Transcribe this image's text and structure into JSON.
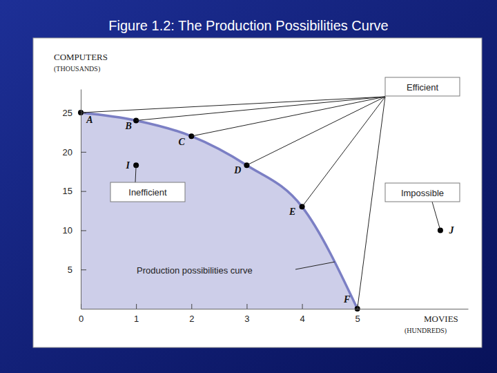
{
  "chart_data": {
    "type": "area",
    "title": "Figure 1.2: The Production Possibilities Curve",
    "xlabel": "MOVIES",
    "xlabel_unit": "(HUNDREDS)",
    "ylabel": "COMPUTERS",
    "ylabel_unit": "(THOUSANDS)",
    "xlim": [
      0,
      7
    ],
    "ylim": [
      0,
      28
    ],
    "xticks": [
      0,
      1,
      2,
      3,
      4,
      5
    ],
    "yticks": [
      5,
      10,
      15,
      20,
      25
    ],
    "grid": false,
    "series": [
      {
        "type": "area",
        "color": "#7b7fc4",
        "marker": "circle",
        "x": [
          0,
          1,
          2,
          3,
          4,
          5
        ],
        "values": [
          25,
          24,
          22,
          18.3,
          13,
          0
        ],
        "labels": [
          "A",
          "B",
          "C",
          "D",
          "E",
          "F"
        ]
      },
      {
        "type": "scatter",
        "color": "#000000",
        "marker": "circle",
        "x": [
          1,
          6.5
        ],
        "values": [
          18.3,
          10
        ],
        "labels": [
          "I",
          "J"
        ]
      }
    ],
    "annotations": [
      {
        "text": "Efficient",
        "points": [
          "A",
          "B",
          "C",
          "D",
          "E",
          "F"
        ]
      },
      {
        "text": "Inefficient",
        "points": [
          "I"
        ]
      },
      {
        "text": "Impossible",
        "points": [
          "J"
        ]
      },
      {
        "text": "Production possibilities curve"
      }
    ]
  }
}
